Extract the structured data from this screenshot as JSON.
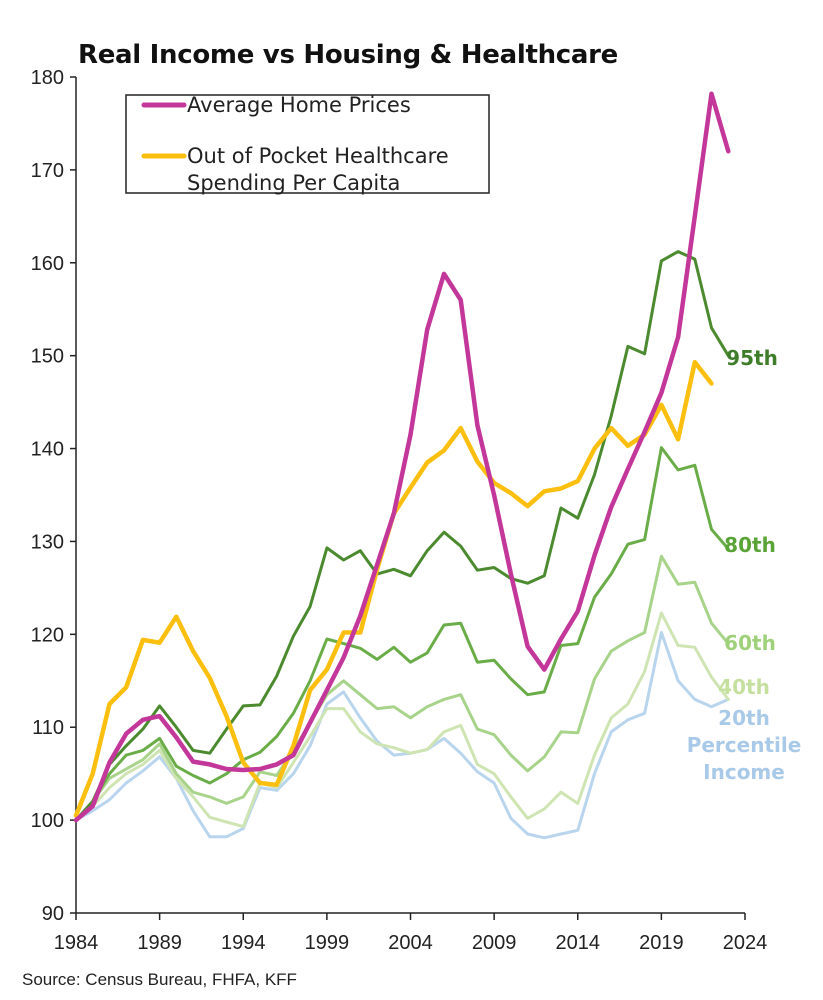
{
  "chart_data": {
    "type": "line",
    "title": "Real Income vs Housing & Healthcare",
    "source": "Source: Census Bureau, FHFA, KFF",
    "xlabel": "",
    "ylabel": "",
    "xlim": [
      1984,
      2024
    ],
    "ylim": [
      90,
      180
    ],
    "x_ticks": [
      1984,
      1989,
      1994,
      1999,
      2004,
      2009,
      2014,
      2019,
      2024
    ],
    "y_ticks": [
      90,
      100,
      110,
      120,
      130,
      140,
      150,
      160,
      170,
      180
    ],
    "legend": {
      "placement": "top-left",
      "entries": [
        {
          "label_lines": [
            "Average Home Prices"
          ],
          "color": "#c4379a"
        },
        {
          "label_lines": [
            "Out of Pocket Healthcare",
            "Spending Per Capita"
          ],
          "color": "#fbbf10"
        }
      ]
    },
    "series": [
      {
        "name": "20th",
        "label_lines": [
          "20th",
          "Percentile",
          "Income"
        ],
        "color": "#b9d5ee",
        "label_color": "#a9c9e8",
        "width": 3,
        "x": [
          1984,
          1985,
          1986,
          1987,
          1988,
          1989,
          1990,
          1991,
          1992,
          1993,
          1994,
          1995,
          1996,
          1997,
          1998,
          1999,
          2000,
          2001,
          2002,
          2003,
          2004,
          2005,
          2006,
          2007,
          2008,
          2009,
          2010,
          2011,
          2012,
          2013,
          2014,
          2015,
          2016,
          2017,
          2018,
          2019,
          2020,
          2021,
          2022,
          2023
        ],
        "values": [
          100,
          101,
          102.2,
          104,
          105.3,
          106.8,
          104.5,
          101,
          98.2,
          98.2,
          99.1,
          103.5,
          103.2,
          105,
          108,
          112.5,
          113.8,
          111,
          108.5,
          107,
          107.2,
          107.6,
          108.8,
          107.2,
          105.2,
          104,
          100.2,
          98.5,
          98.1,
          98.5,
          98.9,
          105,
          109.5,
          110.8,
          111.5,
          120.2,
          115,
          113,
          112.2,
          113
        ]
      },
      {
        "name": "40th",
        "label_lines": [
          "40th"
        ],
        "color": "#cfe4b3",
        "label_color": "#c5df9f",
        "width": 3,
        "x": [
          1984,
          1985,
          1986,
          1987,
          1988,
          1989,
          1990,
          1991,
          1992,
          1993,
          1994,
          1995,
          1996,
          1997,
          1998,
          1999,
          2000,
          2001,
          2002,
          2003,
          2004,
          2005,
          2006,
          2007,
          2008,
          2009,
          2010,
          2011,
          2012,
          2013,
          2014,
          2015,
          2016,
          2017,
          2018,
          2019,
          2020,
          2021,
          2022,
          2023
        ],
        "values": [
          100,
          101.5,
          103.5,
          105,
          106,
          107.5,
          104.5,
          102.5,
          100.3,
          99.8,
          99.3,
          104,
          103.5,
          106.2,
          109,
          112,
          112,
          109.5,
          108.2,
          107.8,
          107.2,
          107.6,
          109.5,
          110.2,
          106,
          105,
          102.5,
          100.2,
          101.2,
          103,
          101.8,
          107,
          111,
          112.5,
          116,
          122.3,
          118.8,
          118.6,
          115.4,
          113
        ]
      },
      {
        "name": "60th",
        "label_lines": [
          "60th"
        ],
        "color": "#a8d38a",
        "label_color": "#9fd07a",
        "width": 3,
        "x": [
          1984,
          1985,
          1986,
          1987,
          1988,
          1989,
          1990,
          1991,
          1992,
          1993,
          1994,
          1995,
          1996,
          1997,
          1998,
          1999,
          2000,
          2001,
          2002,
          2003,
          2004,
          2005,
          2006,
          2007,
          2008,
          2009,
          2010,
          2011,
          2012,
          2013,
          2014,
          2015,
          2016,
          2017,
          2018,
          2019,
          2020,
          2021,
          2022,
          2023
        ],
        "values": [
          100,
          102,
          104.5,
          105.5,
          106.5,
          108.2,
          105,
          103,
          102.5,
          101.8,
          102.5,
          105.2,
          104.8,
          107.5,
          110.5,
          113.5,
          115,
          113.5,
          112,
          112.2,
          111,
          112.2,
          113,
          113.5,
          109.8,
          109.2,
          107,
          105.3,
          106.8,
          109.5,
          109.4,
          115.2,
          118.2,
          119.3,
          120.2,
          128.4,
          125.4,
          125.6,
          121.2,
          119
        ]
      },
      {
        "name": "80th",
        "label_lines": [
          "80th"
        ],
        "color": "#6aad48",
        "label_color": "#5aa437",
        "width": 3,
        "x": [
          1984,
          1985,
          1986,
          1987,
          1988,
          1989,
          1990,
          1991,
          1992,
          1993,
          1994,
          1995,
          1996,
          1997,
          1998,
          1999,
          2000,
          2001,
          2002,
          2003,
          2004,
          2005,
          2006,
          2007,
          2008,
          2009,
          2010,
          2011,
          2012,
          2013,
          2014,
          2015,
          2016,
          2017,
          2018,
          2019,
          2020,
          2021,
          2022,
          2023
        ],
        "values": [
          100,
          102,
          105,
          107,
          107.5,
          108.8,
          105.8,
          104.8,
          104,
          105,
          106.5,
          107.3,
          109,
          111.5,
          115,
          119.5,
          119,
          118.5,
          117.3,
          118.6,
          117,
          118,
          121,
          121.2,
          117,
          117.2,
          115.2,
          113.5,
          113.8,
          118.8,
          119,
          124,
          126.5,
          129.7,
          130.2,
          140.1,
          137.7,
          138.2,
          131.3,
          129.2
        ]
      },
      {
        "name": "95th",
        "label_lines": [
          "95th"
        ],
        "color": "#4b8a2f",
        "label_color": "#3f7d2a",
        "width": 3,
        "x": [
          1984,
          1985,
          1986,
          1987,
          1988,
          1989,
          1990,
          1991,
          1992,
          1993,
          1994,
          1995,
          1996,
          1997,
          1998,
          1999,
          2000,
          2001,
          2002,
          2003,
          2004,
          2005,
          2006,
          2007,
          2008,
          2009,
          2010,
          2011,
          2012,
          2013,
          2014,
          2015,
          2016,
          2017,
          2018,
          2019,
          2020,
          2021,
          2022,
          2023
        ],
        "values": [
          100,
          102,
          106,
          108,
          109.8,
          112.3,
          110,
          107.5,
          107.2,
          109.8,
          112.3,
          112.4,
          115.5,
          119.8,
          123,
          129.3,
          128,
          129,
          126.5,
          127,
          126.3,
          129,
          131,
          129.5,
          126.9,
          127.2,
          126,
          125.5,
          126.3,
          133.6,
          132.5,
          137.2,
          143.5,
          151,
          150.2,
          160.2,
          161.2,
          160.4,
          153,
          150
        ]
      },
      {
        "name": "Out of Pocket Healthcare Spending Per Capita",
        "color": "#fbbf10",
        "width": 4.5,
        "x": [
          1984,
          1985,
          1986,
          1987,
          1988,
          1989,
          1990,
          1991,
          1992,
          1993,
          1994,
          1995,
          1996,
          1997,
          1998,
          1999,
          2000,
          2001,
          2002,
          2003,
          2004,
          2005,
          2006,
          2007,
          2008,
          2009,
          2010,
          2011,
          2012,
          2013,
          2014,
          2015,
          2016,
          2017,
          2018,
          2019,
          2020,
          2021,
          2022
        ],
        "values": [
          100.5,
          105,
          112.5,
          114.3,
          119.4,
          119.1,
          121.9,
          118.2,
          115.3,
          111.2,
          106.2,
          104,
          103.8,
          108,
          114,
          116.2,
          120.2,
          120.2,
          127,
          133,
          135.8,
          138.5,
          139.8,
          142.2,
          138.6,
          136.3,
          135.2,
          133.8,
          135.4,
          135.7,
          136.5,
          140,
          142.2,
          140.3,
          141.5,
          144.7,
          141,
          149.3,
          147
        ]
      },
      {
        "name": "Average Home Prices",
        "color": "#c4379a",
        "width": 4.5,
        "x": [
          1984,
          1985,
          1986,
          1987,
          1988,
          1989,
          1990,
          1991,
          1992,
          1993,
          1994,
          1995,
          1996,
          1997,
          1998,
          1999,
          2000,
          2001,
          2002,
          2003,
          2004,
          2005,
          2006,
          2007,
          2008,
          2009,
          2010,
          2011,
          2012,
          2013,
          2014,
          2015,
          2016,
          2017,
          2018,
          2019,
          2020,
          2021,
          2022,
          2023
        ],
        "values": [
          100,
          101.5,
          106.2,
          109.3,
          110.8,
          111.2,
          108.9,
          106.3,
          106,
          105.5,
          105.4,
          105.5,
          106,
          107,
          110.5,
          114,
          117.5,
          122,
          127.5,
          133,
          141.5,
          152.8,
          158.8,
          156,
          142.5,
          135,
          126.5,
          118.7,
          116.2,
          119.5,
          122.5,
          128.5,
          133.7,
          137.8,
          141.8,
          146,
          152,
          165,
          178.2,
          172
        ]
      }
    ]
  }
}
